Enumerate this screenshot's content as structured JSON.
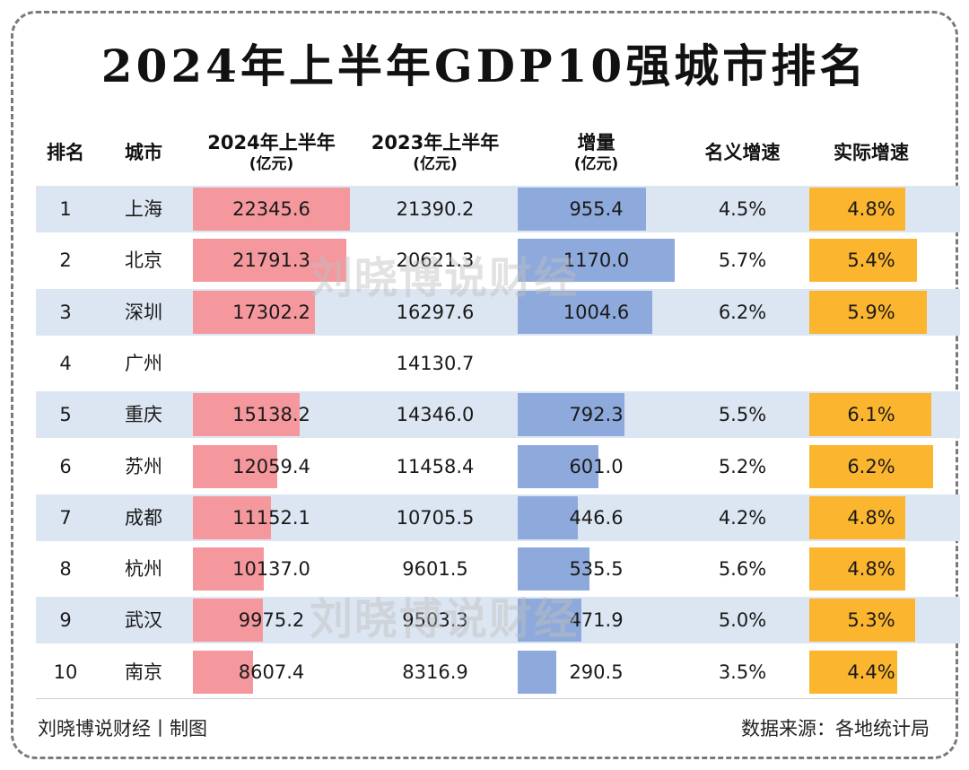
{
  "title": "2024年上半年GDP10强城市排名",
  "headers": {
    "rank": "排名",
    "city": "城市",
    "h2024": "2024年上半年",
    "h2023": "2023年上半年",
    "increase": "增量",
    "unit": "(亿元)",
    "nominal": "名义增速",
    "real": "实际增速"
  },
  "watermark": "刘晓博说财经",
  "footer": {
    "left": "刘晓博说财经丨制图",
    "right": "数据来源：各地统计局"
  },
  "colors": {
    "gdp2024_bar": "#f4989e",
    "increase_bar": "#8ea9db",
    "real_growth_bar": "#fbb52f",
    "row_shade": "#dce6f2"
  },
  "chart_data": {
    "type": "table",
    "columns": [
      "排名",
      "城市",
      "2024年上半年(亿元)",
      "2023年上半年(亿元)",
      "增量(亿元)",
      "名义增速",
      "实际增速"
    ],
    "rows": [
      {
        "rank": "1",
        "city": "上海",
        "gdp2024": "22345.6",
        "gdp2023": "21390.2",
        "increase": "955.4",
        "nominal": "4.5%",
        "real": "4.8%"
      },
      {
        "rank": "2",
        "city": "北京",
        "gdp2024": "21791.3",
        "gdp2023": "20621.3",
        "increase": "1170.0",
        "nominal": "5.7%",
        "real": "5.4%"
      },
      {
        "rank": "3",
        "city": "深圳",
        "gdp2024": "17302.2",
        "gdp2023": "16297.6",
        "increase": "1004.6",
        "nominal": "6.2%",
        "real": "5.9%"
      },
      {
        "rank": "4",
        "city": "广州",
        "gdp2024": "",
        "gdp2023": "14130.7",
        "increase": "",
        "nominal": "",
        "real": ""
      },
      {
        "rank": "5",
        "city": "重庆",
        "gdp2024": "15138.2",
        "gdp2023": "14346.0",
        "increase": "792.3",
        "nominal": "5.5%",
        "real": "6.1%"
      },
      {
        "rank": "6",
        "city": "苏州",
        "gdp2024": "12059.4",
        "gdp2023": "11458.4",
        "increase": "601.0",
        "nominal": "5.2%",
        "real": "6.2%"
      },
      {
        "rank": "7",
        "city": "成都",
        "gdp2024": "11152.1",
        "gdp2023": "10705.5",
        "increase": "446.6",
        "nominal": "4.2%",
        "real": "4.8%"
      },
      {
        "rank": "8",
        "city": "杭州",
        "gdp2024": "10137.0",
        "gdp2023": "9601.5",
        "increase": "535.5",
        "nominal": "5.6%",
        "real": "4.8%"
      },
      {
        "rank": "9",
        "city": "武汉",
        "gdp2024": "9975.2",
        "gdp2023": "9503.3",
        "increase": "471.9",
        "nominal": "5.0%",
        "real": "5.3%"
      },
      {
        "rank": "10",
        "city": "南京",
        "gdp2024": "8607.4",
        "gdp2023": "8316.9",
        "increase": "290.5",
        "nominal": "3.5%",
        "real": "4.4%"
      }
    ]
  }
}
